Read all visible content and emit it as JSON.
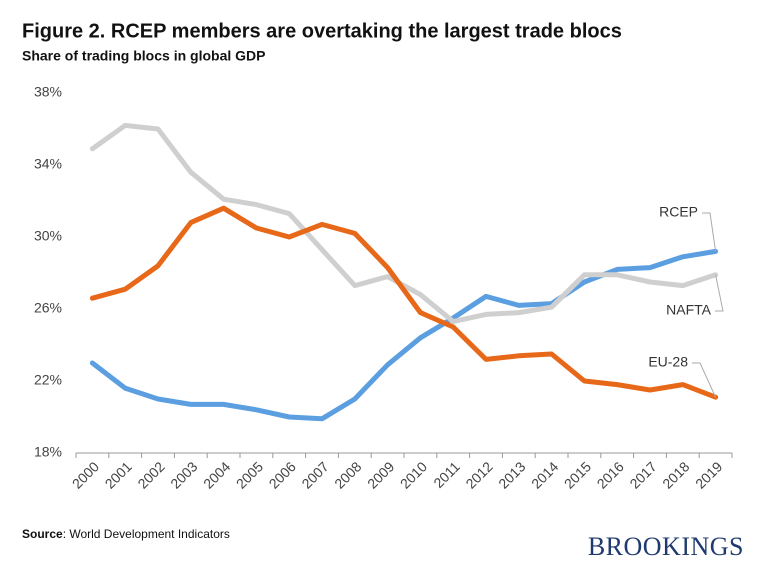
{
  "chart_data": {
    "type": "line",
    "title": "Figure 2. RCEP members are overtaking the largest trade blocs",
    "subtitle": "Share of trading blocs in global GDP",
    "categories": [
      "2000",
      "2001",
      "2002",
      "2003",
      "2004",
      "2005",
      "2006",
      "2007",
      "2008",
      "2009",
      "2010",
      "2011",
      "2012",
      "2013",
      "2014",
      "2015",
      "2016",
      "2017",
      "2018",
      "2019"
    ],
    "series": [
      {
        "name": "RCEP",
        "color": "#5b9fe0",
        "values": [
          23.0,
          21.6,
          21.0,
          20.7,
          20.7,
          20.4,
          20.0,
          19.9,
          21.0,
          22.9,
          24.4,
          25.5,
          26.7,
          26.2,
          26.3,
          27.5,
          28.2,
          28.3,
          28.9,
          29.2
        ]
      },
      {
        "name": "NAFTA",
        "color": "#cfcfcf",
        "values": [
          34.9,
          36.2,
          36.0,
          33.6,
          32.1,
          31.8,
          31.3,
          29.3,
          27.3,
          27.8,
          26.8,
          25.3,
          25.7,
          25.8,
          26.1,
          27.9,
          27.9,
          27.5,
          27.3,
          27.9
        ]
      },
      {
        "name": "EU-28",
        "color": "#e8681a",
        "values": [
          26.6,
          27.1,
          28.4,
          30.8,
          31.6,
          30.5,
          30.0,
          30.7,
          30.2,
          28.3,
          25.8,
          25.0,
          23.2,
          23.4,
          23.5,
          22.0,
          21.8,
          21.5,
          21.8,
          21.1
        ]
      }
    ],
    "ylim": [
      18,
      38
    ],
    "yticks": [
      {
        "value": 18,
        "label": "18%"
      },
      {
        "value": 22,
        "label": "22%"
      },
      {
        "value": 26,
        "label": "26%"
      },
      {
        "value": 30,
        "label": "30%"
      },
      {
        "value": 34,
        "label": "34%"
      },
      {
        "value": 38,
        "label": "38%"
      }
    ],
    "grid": false,
    "source_label": "Source",
    "source_text": ": World Development Indicators",
    "brand": "BROOKINGS"
  }
}
